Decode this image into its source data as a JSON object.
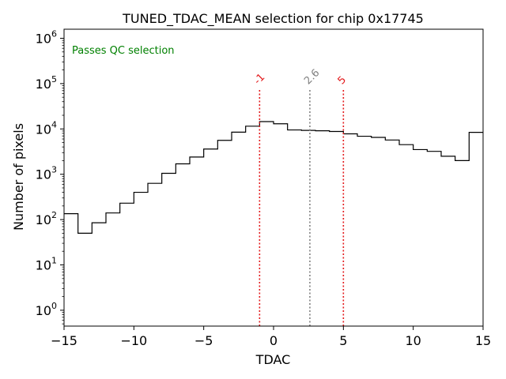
{
  "chart_data": {
    "type": "histogram",
    "title": "TUNED_TDAC_MEAN selection for chip 0x17745",
    "xlabel": "TDAC",
    "ylabel": "Number of pixels",
    "xlim": [
      -15,
      15
    ],
    "ylim_log10": [
      -0.35,
      6.2
    ],
    "yscale": "log",
    "xticks": [
      -15,
      -10,
      -5,
      0,
      5,
      10,
      15
    ],
    "xtick_labels": [
      "−15",
      "−10",
      "−5",
      "0",
      "5",
      "10",
      "15"
    ],
    "yticks_exp": [
      0,
      1,
      2,
      3,
      4,
      5,
      6
    ],
    "bin_edges": [
      -15,
      -14,
      -13,
      -12,
      -11,
      -10,
      -9,
      -8,
      -7,
      -6,
      -5,
      -4,
      -3,
      -2,
      -1,
      0,
      1,
      2,
      3,
      4,
      5,
      6,
      7,
      8,
      9,
      10,
      11,
      12,
      13,
      14,
      15
    ],
    "counts": [
      135,
      50,
      85,
      140,
      230,
      400,
      630,
      1050,
      1700,
      2400,
      3600,
      5600,
      8500,
      11500,
      14500,
      13000,
      9500,
      9300,
      9100,
      8800,
      7800,
      6900,
      6500,
      5700,
      4500,
      3500,
      3200,
      2500,
      2000,
      8400
    ],
    "vlines": [
      {
        "x": -1,
        "label": "-1",
        "color": "#e31a1c"
      },
      {
        "x": 2.6,
        "label": "2.6",
        "color": "#808080"
      },
      {
        "x": 5,
        "label": "5",
        "color": "#e31a1c"
      }
    ],
    "annotation": {
      "text": "Passes QC selection",
      "color": "#008000"
    },
    "line_color": "#000000"
  }
}
